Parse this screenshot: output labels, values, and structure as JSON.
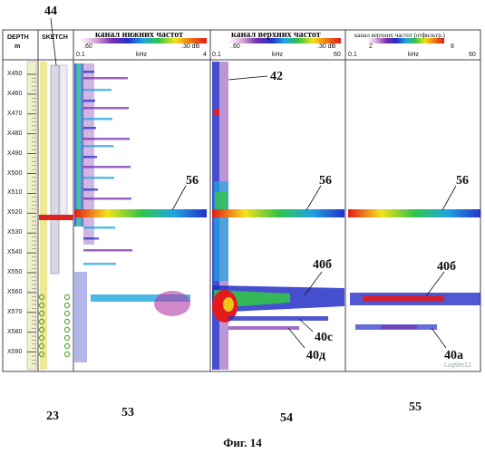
{
  "header": {
    "depth_title": "DEPTH",
    "depth_unit": "m",
    "sketch_title": "SKETCH",
    "panels": [
      {
        "title": "канал нижних частот",
        "scale_min": ".60",
        "scale_max": ".30 dB",
        "axis_min": "0.1",
        "axis_unit": "kHz",
        "axis_max": "4"
      },
      {
        "title": "канал верхних частот",
        "scale_min": ".60",
        "scale_max": ".30 dB",
        "axis_min": "0.1",
        "axis_unit": "kHz",
        "axis_max": "60"
      },
      {
        "title": "канал верхних частот (отфильтр.)",
        "scale_min": "2",
        "scale_max": "8",
        "axis_min": "0.1",
        "axis_unit": "kHz",
        "axis_max": "60"
      }
    ]
  },
  "depth_ticks": [
    "X450",
    "X460",
    "X470",
    "X480",
    "X490",
    "X500",
    "X510",
    "X520",
    "X530",
    "X540",
    "X550",
    "X560",
    "X570",
    "X580",
    "X590"
  ],
  "callouts": {
    "n44": "44",
    "n42": "42",
    "n56a": "56",
    "n56b": "56",
    "n56c": "56",
    "n40b1": "40б",
    "n40c": "40с",
    "n40d": "40д",
    "n40b2": "40б",
    "n40a": "40а",
    "n23": "23",
    "n53": "53",
    "n54": "54",
    "n55": "55"
  },
  "watermark": "LogWe12",
  "caption": "Фиг. 14",
  "colors": {
    "colorbar": [
      "#ffffff",
      "#d9a9d9",
      "#7a2fb0",
      "#2430c8",
      "#1fa6e0",
      "#33c34a",
      "#f2e21b",
      "#f07a12",
      "#e41a1a"
    ],
    "sketch_tube": "#c8c8d8",
    "sketch_markers": "#5aa83a",
    "track_yellow": "#e8e06a"
  }
}
